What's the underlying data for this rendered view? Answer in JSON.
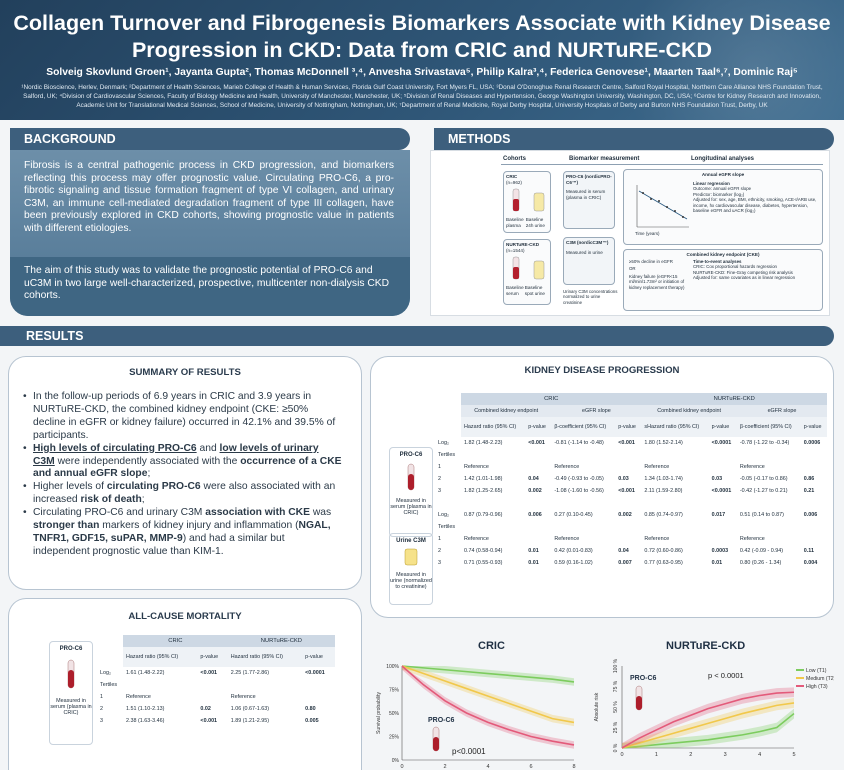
{
  "header": {
    "title": "Collagen Turnover and Fibrogenesis Biomarkers Associate with Kidney Disease Progression in CKD: Data from CRIC and NURTuRE-CKD",
    "authors": "Solveig Skovlund Groen¹, Jayanta Gupta², Thomas McDonnell ³,⁴, Anvesha Srivastava⁵, Philip Kalra³,⁴, Federica Genovese¹, Maarten Taal⁶,⁷, Dominic Raj⁵",
    "affiliations": "¹Nordic Bioscience, Herlev, Denmark; ²Department of Health Sciences, Marieb College of Health & Human Services, Florida Gulf Coast University, Fort Myers FL, USA; ³Donal O'Donoghue Renal Research Centre, Salford Royal Hospital, Northern Care Alliance NHS Foundation Trust, Salford, UK; ⁴Division of Cardiovascular Sciences, Faculty of Biology Medicine and Health, University of Manchester, Manchester, UK; ⁵Division of Renal Diseases and Hypertension, George Washington University, Washington, DC, USA; ⁶Centre for Kidney Research and Innovation, Academic Unit for Translational Medical Sciences, School of Medicine, University of Nottingham, Nottingham, UK; ⁷Department of Renal Medicine, Royal Derby Hospital, University Hospitals of Derby and Burton NHS Foundation Trust, Derby, UK"
  },
  "background": {
    "heading": "BACKGROUND",
    "text": "Fibrosis is a central pathogenic process in CKD progression, and biomarkers reflecting this process may offer prognostic value. Circulating PRO-C6, a pro-fibrotic signaling and tissue formation fragment of type VI collagen, and urinary C3M, an immune cell-mediated degradation fragment of type III collagen, have been previously explored in CKD cohorts, showing prognostic value in patients with different etiologies.",
    "aim": "The aim of this study was to validate the prognostic potential of PRO-C6 and uC3M in two large well-characterized, prospective, multicenter non-dialysis CKD cohorts."
  },
  "methods": {
    "heading": "METHODS",
    "col_cohorts": "Cohorts",
    "col_biomarker": "Biomarker measurement",
    "col_longitudinal": "Longitudinal analyses",
    "cric_label": "CRIC",
    "cric_n": "(n=962)",
    "nurture_label": "NURTuRE-CKD",
    "nurture_n": "(n=1544)",
    "baseline_plasma": "Baseline plasma",
    "baseline_urine": "Baseline 24h urine",
    "baseline_serum": "Baseline serum",
    "baseline_spot_urine": "Baseline spot urine",
    "proc6_box": "PRO-C6 (nordicPRO-C6™)",
    "proc6_measured": "Measured in serum (plasma in CRIC)",
    "c3m_box": "C3M (nordicC3M™)",
    "c3m_measured": "Measured in urine",
    "urinary_note": "Urinary C3M concentrations normalized to urine creatinine",
    "annual_slope": "Annual eGFR slope",
    "egfr_axis": "eGFR (ml/min/1.73m²)",
    "time_axis": "Time (years)",
    "linreg": "Linear regression",
    "linreg_outcome": "Outcome: annual eGFR slope",
    "linreg_predictor": "Predictor: biomarker (log₂)",
    "linreg_adjusted": "Adjusted for: sex, age, BMI, ethnicity, smoking, ACE-I/ARB use, income, hx cardiovascular disease, diabetes, hypertension, baseline eGFR and uACR (log₂)",
    "cke": "Combined kidney endpoint (CKE)",
    "decline": "≥50% decline in eGFR",
    "or": "OR",
    "failure": "Kidney failure (eGFR<15 ml/min/1.73m² or initiation of kidney replacement therapy)",
    "tte": "Time-to-event analyses",
    "tte_cric": "CRIC: Cox proportional hazards regression",
    "tte_nurture": "NURTuRE-CKD: Fine-Gray competing risk analysis",
    "tte_adjusted": "Adjusted for: same covariates as in linear regression"
  },
  "results": {
    "heading": "RESULTS",
    "summary_title": "SUMMARY OF RESULTS",
    "kdp_title": "KIDNEY DISEASE PROGRESSION",
    "mortality_title": "ALL-CAUSE MORTALITY"
  },
  "summary": {
    "b1": "In the follow-up periods of 6.9 years in CRIC and 3.9 years in NURTuRE-CKD, the combined kidney endpoint (CKE: ≥50% decline in eGFR or kidney failure) occurred in 42.1% and 39.5% of participants.",
    "b2_a": "High levels of circulating PRO-C6",
    "b2_b": " and ",
    "b2_c": "low levels of urinary C3M",
    "b2_d": " were independently associated with the ",
    "b2_e": "occurrence of a CKE and annual eGFR slope",
    "b2_f": ";",
    "b3_a": "Higher levels of ",
    "b3_b": "circulating PRO-C6",
    "b3_c": " were also associated with an increased ",
    "b3_d": "risk of death",
    "b3_e": ";",
    "b4_a": "Circulating PRO-C6 and urinary C3M ",
    "b4_b": "association with CKE",
    "b4_c": " was ",
    "b4_d": "stronger than",
    "b4_e": " markers of kidney injury and inflammation (",
    "b4_f": "NGAL, TNFR1, GDF15, suPAR, MMP-9",
    "b4_g": ") and had a similar but independent prognostic value than KIM-1."
  },
  "kdp_table": {
    "cohort_cric": "CRIC",
    "cohort_nurture": "NURTuRE-CKD",
    "cke": "Combined kidney endpoint",
    "slope": "eGFR slope",
    "hr": "Hazard ratio (95% CI)",
    "shr": "sHazard ratio (95% CI)",
    "beta": "β-coefficient (95% CI)",
    "p": "p-value",
    "proc6_label": "PRO-C6",
    "proc6_note": "Measured in serum (plasma in CRIC)",
    "c3m_label": "Urine C3M",
    "c3m_note": "Measured in urine (normalized to creatinine)",
    "rows_proc6": [
      [
        "Log₂",
        "1.82 (1.48-2.23)",
        "<0.001",
        "-0.81 (-1.14 to -0.48)",
        "<0.001",
        "1.80 (1.52-2.14)",
        "<0.0001",
        "-0.78 (-1.22 to -0.34)",
        "0.0006"
      ],
      [
        "Tertiles",
        "",
        "",
        "",
        "",
        "",
        "",
        "",
        ""
      ],
      [
        "1",
        "Reference",
        "",
        "Reference",
        "",
        "Reference",
        "",
        "Reference",
        ""
      ],
      [
        "2",
        "1.42 (1.01-1.98)",
        "0.04",
        "-0.49 (-0.93 to -0.05)",
        "0.03",
        "1.34 (1.03-1.74)",
        "0.03",
        "-0.05 (-0.17 to 0.86)",
        "0.86"
      ],
      [
        "3",
        "1.82 (1.25-2.65)",
        "0.002",
        "-1.08 (-1.60 to -0.56)",
        "<0.001",
        "2.11 (1.59-2.80)",
        "<0.0001",
        "-0.42 (-1.27 to 0.21)",
        "0.21"
      ]
    ],
    "rows_c3m": [
      [
        "Log₂",
        "0.87 (0.79-0.96)",
        "0.006",
        "0.27 (0.10-0.45)",
        "0.002",
        "0.85 (0.74-0.97)",
        "0.017",
        "0.51 (0.14 to 0.87)",
        "0.006"
      ],
      [
        "Tertiles",
        "",
        "",
        "",
        "",
        "",
        "",
        "",
        ""
      ],
      [
        "1",
        "Reference",
        "",
        "Reference",
        "",
        "Reference",
        "",
        "Reference",
        ""
      ],
      [
        "2",
        "0.74 (0.58-0.94)",
        "0.01",
        "0.42 (0.01-0.83)",
        "0.04",
        "0.72 (0.60-0.86)",
        "0.0003",
        "0.42 (-0.09 - 0.94)",
        "0.11"
      ],
      [
        "3",
        "0.71 (0.55-0.93)",
        "0.01",
        "0.59 (0.16-1.02)",
        "0.007",
        "0.77 (0.63-0.95)",
        "0.01",
        "0.80 (0.26 - 1.34)",
        "0.004"
      ]
    ]
  },
  "mort_table": {
    "cohort_cric": "CRIC",
    "cohort_nurture": "NURTuRE-CKD",
    "hr": "Hazard ratio (95% CI)",
    "p": "p-value",
    "label": "PRO-C6",
    "note": "Measured in serum (plasma in CRIC)",
    "rows": [
      [
        "Log₂",
        "1.61 (1.48-2.22)",
        "<0.001",
        "2.25 (1.77-2.86)",
        "<0.0001"
      ],
      [
        "Tertiles",
        "",
        "",
        "",
        ""
      ],
      [
        "1",
        "Reference",
        "",
        "Reference",
        ""
      ],
      [
        "2",
        "1.51 (1.10-2.13)",
        "0.02",
        "1.06 (0.67-1.63)",
        "0.80"
      ],
      [
        "3",
        "2.38 (1.63-3.46)",
        "<0.001",
        "1.89 (1.21-2.95)",
        "0.005"
      ]
    ]
  },
  "chart_data": [
    {
      "type": "line",
      "title": "CRIC",
      "ylabel": "Survival probability",
      "series_label": "PRO-C6",
      "pvalue": "p<0.0001",
      "x": [
        0,
        1,
        2,
        3,
        4,
        5,
        6,
        7,
        8
      ],
      "ylim": [
        0,
        100
      ],
      "y_ticks": [
        "0%",
        "25%",
        "50%",
        "75%",
        "100%"
      ],
      "x_ticks": [
        "0",
        "2",
        "4",
        "6",
        "8"
      ],
      "colors": [
        "#7ccc5e",
        "#f1c84b",
        "#e35a7a"
      ],
      "series": [
        {
          "values": [
            100,
            98,
            96,
            94,
            92,
            90,
            88,
            86,
            83
          ]
        },
        {
          "values": [
            100,
            92,
            84,
            76,
            68,
            60,
            52,
            44,
            40
          ]
        },
        {
          "values": [
            100,
            80,
            63,
            50,
            40,
            32,
            25,
            20,
            16
          ]
        }
      ]
    },
    {
      "type": "line",
      "title": "NURTuRE-CKD",
      "ylabel": "Absolute risk",
      "series_label": "PRO-C6",
      "pvalue": "p < 0.0001",
      "x": [
        0,
        0.5,
        1,
        1.5,
        2,
        2.5,
        3,
        3.5,
        4,
        4.5,
        5
      ],
      "ylim": [
        0,
        100
      ],
      "y_ticks": [
        "0 %",
        "25 %",
        "50 %",
        "75 %",
        "100 %"
      ],
      "x_ticks": [
        "0",
        "1",
        "2",
        "3",
        "4",
        "5"
      ],
      "colors": [
        "#7ccc5e",
        "#f1c84b",
        "#e35a7a"
      ],
      "series": [
        {
          "name": "Low (T1)",
          "values": [
            0,
            2,
            4,
            6,
            8,
            10,
            13,
            16,
            20,
            25,
            42
          ]
        },
        {
          "name": "Medium (T2)",
          "values": [
            0,
            6,
            12,
            18,
            24,
            30,
            36,
            42,
            47,
            52,
            55
          ]
        },
        {
          "name": "High (T3)",
          "values": [
            0,
            12,
            22,
            32,
            40,
            48,
            54,
            60,
            64,
            67,
            68
          ]
        }
      ]
    }
  ]
}
